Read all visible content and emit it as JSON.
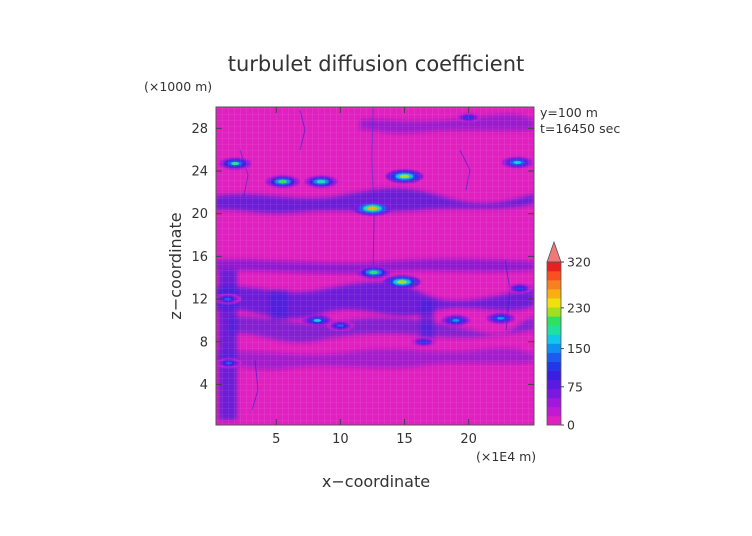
{
  "chart_data": {
    "type": "heatmap",
    "title": "turbulet diffusion coefficient",
    "xlabel": "x−coordinate",
    "ylabel": "z−coordinate",
    "x_unit": "(×1E4 m)",
    "y_unit": "(×1000 m)",
    "annotations": [
      "y=100 m",
      "t=16450 sec"
    ],
    "xlim": [
      0.3,
      25.1
    ],
    "ylim": [
      0.2,
      30.0
    ],
    "xticks": [
      5,
      10,
      15,
      20
    ],
    "yticks": [
      4,
      8,
      12,
      16,
      20,
      24,
      28
    ],
    "colorbar": {
      "levels": [
        0,
        75,
        150,
        230,
        320
      ],
      "tick_labels": [
        "0",
        "75",
        "150",
        "230",
        "320"
      ],
      "colors": [
        "#e020c0",
        "#c21ad0",
        "#a018dc",
        "#7a18e0",
        "#5a1ae0",
        "#3c1ee0",
        "#2238e8",
        "#1a5cf0",
        "#0e90f0",
        "#10c8e8",
        "#20e0a0",
        "#30e060",
        "#a0e020",
        "#f0e010",
        "#f8b010",
        "#f88020",
        "#f85020",
        "#e82020"
      ],
      "extend_color": "#f07878"
    },
    "features": [
      {
        "x": 15.0,
        "z": 23.5,
        "value": 230
      },
      {
        "x": 14.8,
        "z": 13.6,
        "value": 230
      },
      {
        "x": 5.5,
        "z": 23.0,
        "value": 200
      },
      {
        "x": 8.5,
        "z": 23.0,
        "value": 190
      },
      {
        "x": 1.8,
        "z": 24.7,
        "value": 180
      },
      {
        "x": 23.8,
        "z": 24.8,
        "value": 170
      },
      {
        "x": 12.5,
        "z": 20.5,
        "value": 250
      },
      {
        "x": 12.6,
        "z": 14.5,
        "value": 200
      },
      {
        "x": 8.2,
        "z": 10.0,
        "value": 160
      },
      {
        "x": 10.0,
        "z": 9.5,
        "value": 140
      },
      {
        "x": 19.0,
        "z": 10.0,
        "value": 150
      },
      {
        "x": 22.5,
        "z": 10.2,
        "value": 150
      },
      {
        "x": 1.2,
        "z": 12.0,
        "value": 140
      },
      {
        "x": 24.0,
        "z": 13.0,
        "value": 120
      },
      {
        "x": 16.5,
        "z": 8.0,
        "value": 110
      },
      {
        "x": 1.3,
        "z": 6.0,
        "value": 130
      },
      {
        "x": 20.0,
        "z": 29.0,
        "value": 110
      }
    ]
  }
}
